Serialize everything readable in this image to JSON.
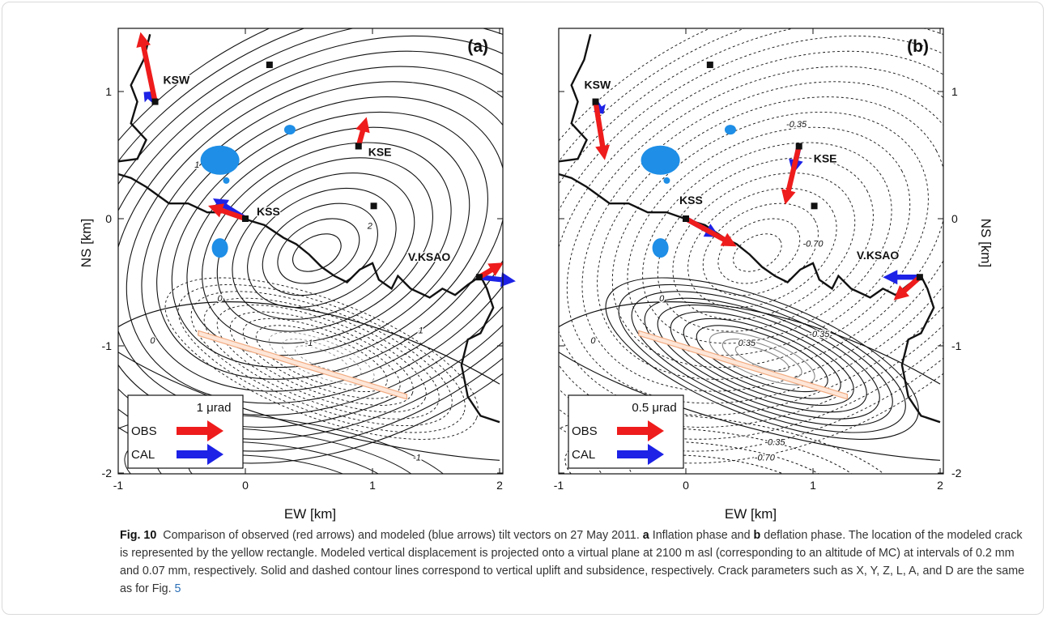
{
  "figure": {
    "panels": [
      {
        "label": "(a)",
        "scale_text": "1 μrad",
        "legend_obs": "OBS",
        "legend_cal": "CAL",
        "stations": [
          {
            "name": "KSW",
            "x": -0.71,
            "y": 0.92,
            "obs": [
              -0.18,
              0.86
            ],
            "cal": [
              -0.14,
              0.12
            ]
          },
          {
            "name": "KSE",
            "x": 0.89,
            "y": 0.57,
            "obs": [
              0.1,
              0.36
            ],
            "cal": [
              0.0,
              0.0
            ]
          },
          {
            "name": "KSS",
            "x": 0.0,
            "y": 0.0,
            "obs": [
              -0.46,
              0.16
            ],
            "cal": [
              -0.4,
              0.25
            ]
          },
          {
            "name": "V.KSAO",
            "x": 1.84,
            "y": -0.46,
            "obs": [
              0.3,
              0.18
            ],
            "cal": [
              0.45,
              -0.05
            ]
          }
        ],
        "contour_labels": [
          "1",
          "2",
          "0",
          "0",
          "-1",
          "1",
          "-1"
        ]
      },
      {
        "label": "(b)",
        "scale_text": "0.5 μrad",
        "legend_obs": "OBS",
        "legend_cal": "CAL",
        "stations": [
          {
            "name": "KSW",
            "x": -0.71,
            "y": 0.92,
            "obs": [
              0.06,
              -0.38
            ],
            "cal": [
              0.05,
              -0.08
            ]
          },
          {
            "name": "KSE",
            "x": 0.89,
            "y": 0.57,
            "obs": [
              -0.09,
              -0.38
            ],
            "cal": [
              -0.04,
              -0.18
            ]
          },
          {
            "name": "KSS",
            "x": 0.0,
            "y": 0.0,
            "obs": [
              0.33,
              -0.18
            ],
            "cal": [
              0.22,
              -0.12
            ]
          },
          {
            "name": "V.KSAO",
            "x": 1.84,
            "y": -0.46,
            "obs": [
              -0.17,
              -0.15
            ],
            "cal": [
              -0.24,
              0.0
            ]
          }
        ],
        "contour_labels": [
          "-0.35",
          "-0.70",
          "0",
          "0",
          "0.35",
          "-0.35",
          "-0.35",
          "-0.70"
        ]
      }
    ],
    "reference_points": [
      {
        "x": 0.19,
        "y": 1.21
      },
      {
        "x": 1.01,
        "y": 0.1
      }
    ],
    "x_axis": {
      "label": "EW [km]",
      "ticks": [
        "-1",
        "0",
        "1",
        "2"
      ]
    },
    "y_axis": {
      "label": "NS [km]",
      "ticks": [
        "1",
        "0",
        "-1",
        "-2"
      ]
    },
    "colors": {
      "obs": "#ee1c1c",
      "cal": "#1d22e6",
      "lake": "#1e8ee6",
      "crack": "#f2aa80"
    }
  },
  "caption": {
    "label": "Fig. 10",
    "text_1": "Comparison of observed (red arrows) and modeled (blue arrows) tilt vectors on 27 May 2011.",
    "a": "a",
    "text_2": "Inflation phase and",
    "b": "b",
    "text_3": "deflation phase. The location of the modeled crack is represented by the yellow rectangle. Modeled vertical displacement is projected onto a virtual plane at 2100 m asl (corresponding to an altitude of MC) at intervals of 0.2 mm and 0.07 mm, respectively. Solid and dashed contour lines correspond to vertical uplift and subsidence, respectively. Crack parameters such as X, Y, Z, L, A, and D are the same as for Fig.",
    "ref": "5"
  }
}
